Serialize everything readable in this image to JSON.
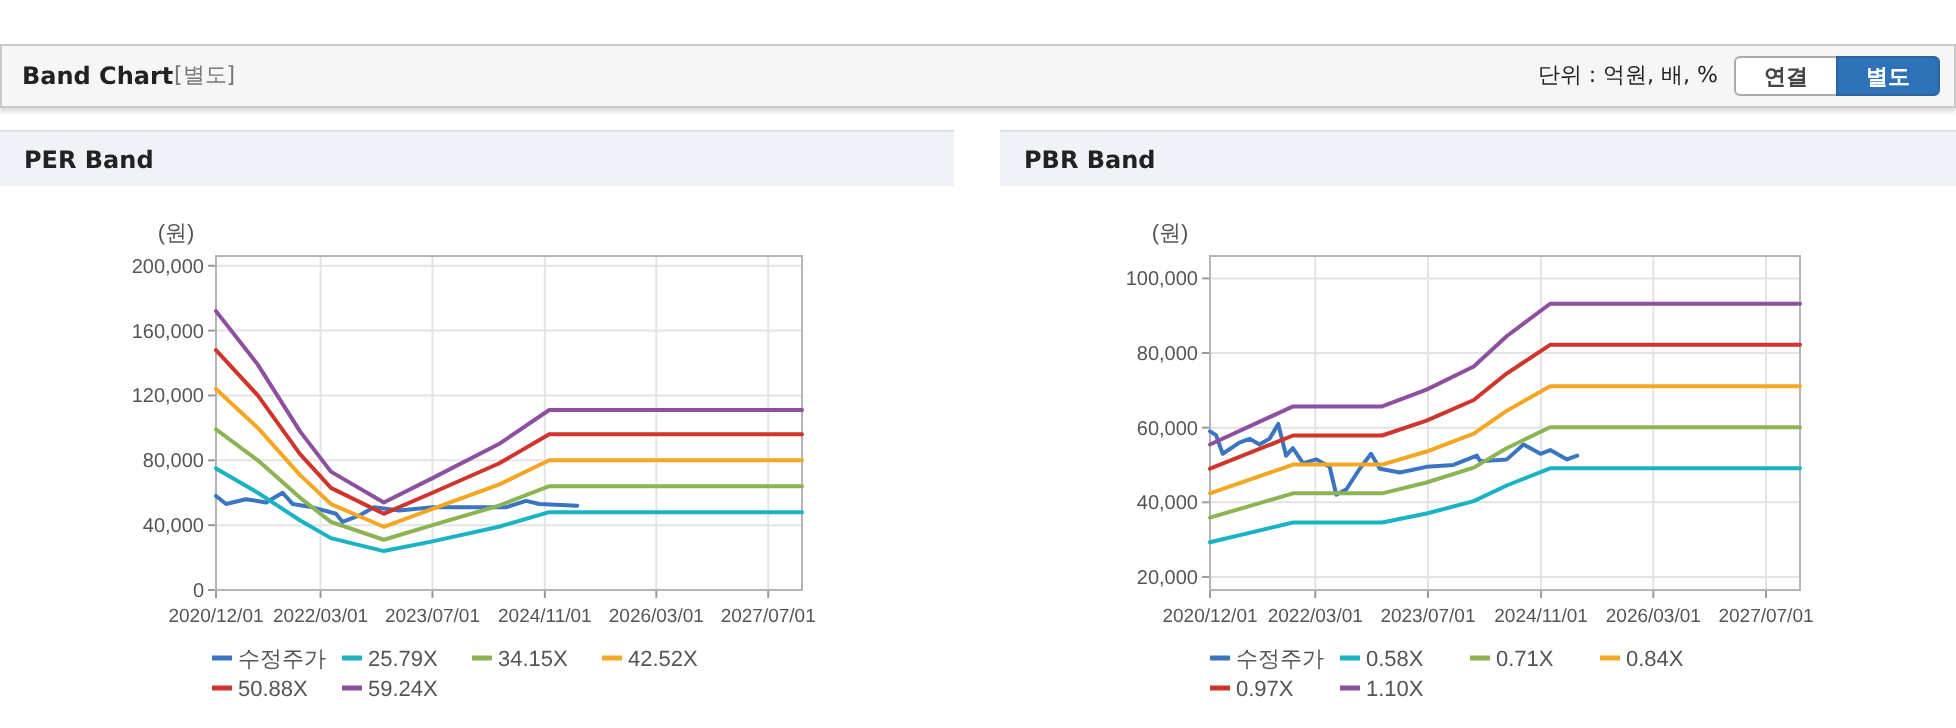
{
  "chart_data": [
    {
      "type": "line",
      "title": "PER Band",
      "ylabel": "(원)",
      "annotations": [
        "Band Chart",
        "[별도]",
        "단위 : 억원, 배, %",
        "연결",
        "별도"
      ],
      "xlim": [
        "2020-12-01",
        "2027-11-25"
      ],
      "xticks": [
        {
          "value": "2020-12-01",
          "label": "2020/12/01"
        },
        {
          "value": "2022-03-01",
          "label": "2022/03/01"
        },
        {
          "value": "2023-07-01",
          "label": "2023/07/01"
        },
        {
          "value": "2024-11-01",
          "label": "2024/11/01"
        },
        {
          "value": "2026-03-01",
          "label": "2026/03/01"
        },
        {
          "value": "2027-07-01",
          "label": "2027/07/01"
        }
      ],
      "ylim": [
        0,
        206000
      ],
      "yticks": [
        {
          "value": 0,
          "label": "0"
        },
        {
          "value": 40000,
          "label": "40,000"
        },
        {
          "value": 80000,
          "label": "80,000"
        },
        {
          "value": 120000,
          "label": "120,000"
        },
        {
          "value": 160000,
          "label": "160,000"
        },
        {
          "value": 200000,
          "label": "200,000"
        }
      ],
      "grid": true,
      "legend": "bottom",
      "series": [
        {
          "name": "수정주가",
          "color": "#3a75c4",
          "x": [
            "2020-12-01",
            "2021-01-14",
            "2021-04-10",
            "2021-07-07",
            "2021-09-17",
            "2021-10-31",
            "2022-01-25",
            "2022-05-07",
            "2022-06-05",
            "2022-08-17",
            "2022-10-19",
            "2023-02-07",
            "2023-07-01",
            "2023-11-23",
            "2024-05-16",
            "2024-08-11",
            "2024-10-08",
            "2025-03-22"
          ],
          "values": [
            58000,
            53000,
            56000,
            54000,
            60000,
            53000,
            51000,
            47000,
            42000,
            46000,
            51000,
            49000,
            51000,
            51000,
            51000,
            55000,
            53000,
            52000
          ]
        },
        {
          "name": "25.79X",
          "color": "#1ab3c5",
          "x": [
            "2020-12-01",
            "2021-06-01",
            "2021-12-01",
            "2022-04-15",
            "2022-12-01",
            "2023-07-01",
            "2024-04-15",
            "2024-11-20",
            "2027-11-25"
          ],
          "values": [
            75000,
            60000,
            43000,
            32000,
            24000,
            30000,
            39000,
            48000,
            48000
          ]
        },
        {
          "name": "34.15X",
          "color": "#8cb453",
          "x": [
            "2020-12-01",
            "2021-06-01",
            "2021-12-01",
            "2022-04-15",
            "2022-12-01",
            "2023-07-01",
            "2024-04-15",
            "2024-11-20",
            "2027-11-25"
          ],
          "values": [
            99000,
            80000,
            57000,
            42000,
            31000,
            40000,
            52000,
            64000,
            64000
          ]
        },
        {
          "name": "42.52X",
          "color": "#f5a623",
          "x": [
            "2020-12-01",
            "2021-06-01",
            "2021-12-01",
            "2022-04-15",
            "2022-12-01",
            "2023-07-01",
            "2024-04-15",
            "2024-11-20",
            "2027-11-25"
          ],
          "values": [
            124000,
            100000,
            71000,
            53000,
            39000,
            50000,
            65000,
            80000,
            80000
          ]
        },
        {
          "name": "50.88X",
          "color": "#d0342c",
          "x": [
            "2020-12-01",
            "2021-06-01",
            "2021-12-01",
            "2022-04-15",
            "2022-12-01",
            "2023-07-01",
            "2024-04-15",
            "2024-11-20",
            "2027-11-25"
          ],
          "values": [
            148000,
            120000,
            84000,
            63000,
            47000,
            60000,
            78000,
            96000,
            96000
          ]
        },
        {
          "name": "59.24X",
          "color": "#8e4fa0",
          "x": [
            "2020-12-01",
            "2021-06-01",
            "2021-12-01",
            "2022-04-15",
            "2022-12-01",
            "2023-07-01",
            "2024-04-15",
            "2024-11-20",
            "2027-11-25"
          ],
          "values": [
            172000,
            139000,
            98000,
            73000,
            54000,
            69000,
            90000,
            111000,
            111000
          ]
        }
      ]
    },
    {
      "type": "line",
      "title": "PBR Band",
      "ylabel": "(원)",
      "xlim": [
        "2020-12-01",
        "2027-11-25"
      ],
      "xticks": [
        {
          "value": "2020-12-01",
          "label": "2020/12/01"
        },
        {
          "value": "2022-03-01",
          "label": "2022/03/01"
        },
        {
          "value": "2023-07-01",
          "label": "2023/07/01"
        },
        {
          "value": "2024-11-01",
          "label": "2024/11/01"
        },
        {
          "value": "2026-03-01",
          "label": "2026/03/01"
        },
        {
          "value": "2027-07-01",
          "label": "2027/07/01"
        }
      ],
      "ylim": [
        16500,
        106000
      ],
      "yticks": [
        {
          "value": 20000,
          "label": "20,000"
        },
        {
          "value": 40000,
          "label": "40,000"
        },
        {
          "value": 60000,
          "label": "60,000"
        },
        {
          "value": 80000,
          "label": "80,000"
        },
        {
          "value": 100000,
          "label": "100,000"
        }
      ],
      "grid": true,
      "legend": "bottom",
      "series": [
        {
          "name": "수정주가",
          "color": "#3a75c4",
          "x": [
            "2020-12-01",
            "2020-12-27",
            "2021-01-25",
            "2021-04-07",
            "2021-05-21",
            "2021-07-03",
            "2021-08-15",
            "2021-09-22",
            "2021-10-26",
            "2021-11-24",
            "2022-01-07",
            "2022-03-06",
            "2022-05-02",
            "2022-05-31",
            "2022-07-14",
            "2022-09-09",
            "2022-10-28",
            "2022-12-05",
            "2023-03-02",
            "2023-06-25",
            "2023-10-19",
            "2024-01-28",
            "2024-02-12",
            "2024-06-06",
            "2024-08-17",
            "2024-10-29",
            "2024-12-11",
            "2025-02-21",
            "2025-04-06"
          ],
          "values": [
            59000,
            58000,
            53000,
            56000,
            57000,
            55500,
            57000,
            61000,
            52500,
            54500,
            50500,
            51500,
            49500,
            42000,
            43500,
            49000,
            53000,
            49000,
            48000,
            49500,
            50000,
            52500,
            51000,
            51500,
            55500,
            53000,
            54000,
            51500,
            52500
          ]
        },
        {
          "name": "0.58X",
          "color": "#1ab3c5",
          "x": [
            "2020-12-01",
            "2021-11-25",
            "2022-12-15",
            "2023-06-25",
            "2024-01-15",
            "2024-06-05",
            "2024-12-10",
            "2027-11-25"
          ],
          "values": [
            29300,
            34600,
            34600,
            37000,
            40300,
            44500,
            49100,
            49100
          ]
        },
        {
          "name": "0.71X",
          "color": "#8cb453",
          "x": [
            "2020-12-01",
            "2021-11-25",
            "2022-12-15",
            "2023-06-25",
            "2024-01-15",
            "2024-06-05",
            "2024-12-10",
            "2027-11-25"
          ],
          "values": [
            35900,
            42400,
            42400,
            45300,
            49300,
            54500,
            60100,
            60100
          ]
        },
        {
          "name": "0.84X",
          "color": "#f5a623",
          "x": [
            "2020-12-01",
            "2021-11-25",
            "2022-12-15",
            "2023-06-25",
            "2024-01-15",
            "2024-06-05",
            "2024-12-10",
            "2027-11-25"
          ],
          "values": [
            42400,
            50100,
            50100,
            53600,
            58400,
            64500,
            71100,
            71100
          ]
        },
        {
          "name": "0.97X",
          "color": "#d0342c",
          "x": [
            "2020-12-01",
            "2021-11-25",
            "2022-12-15",
            "2023-06-25",
            "2024-01-15",
            "2024-06-05",
            "2024-12-10",
            "2027-11-25"
          ],
          "values": [
            49000,
            57900,
            57900,
            61900,
            67400,
            74500,
            82200,
            82200
          ]
        },
        {
          "name": "1.10X",
          "color": "#8e4fa0",
          "x": [
            "2020-12-01",
            "2021-11-25",
            "2022-12-15",
            "2023-06-25",
            "2024-01-15",
            "2024-06-05",
            "2024-12-10",
            "2027-11-25"
          ],
          "values": [
            55500,
            65700,
            65700,
            70200,
            76400,
            84500,
            93200,
            93200
          ]
        }
      ]
    }
  ]
}
